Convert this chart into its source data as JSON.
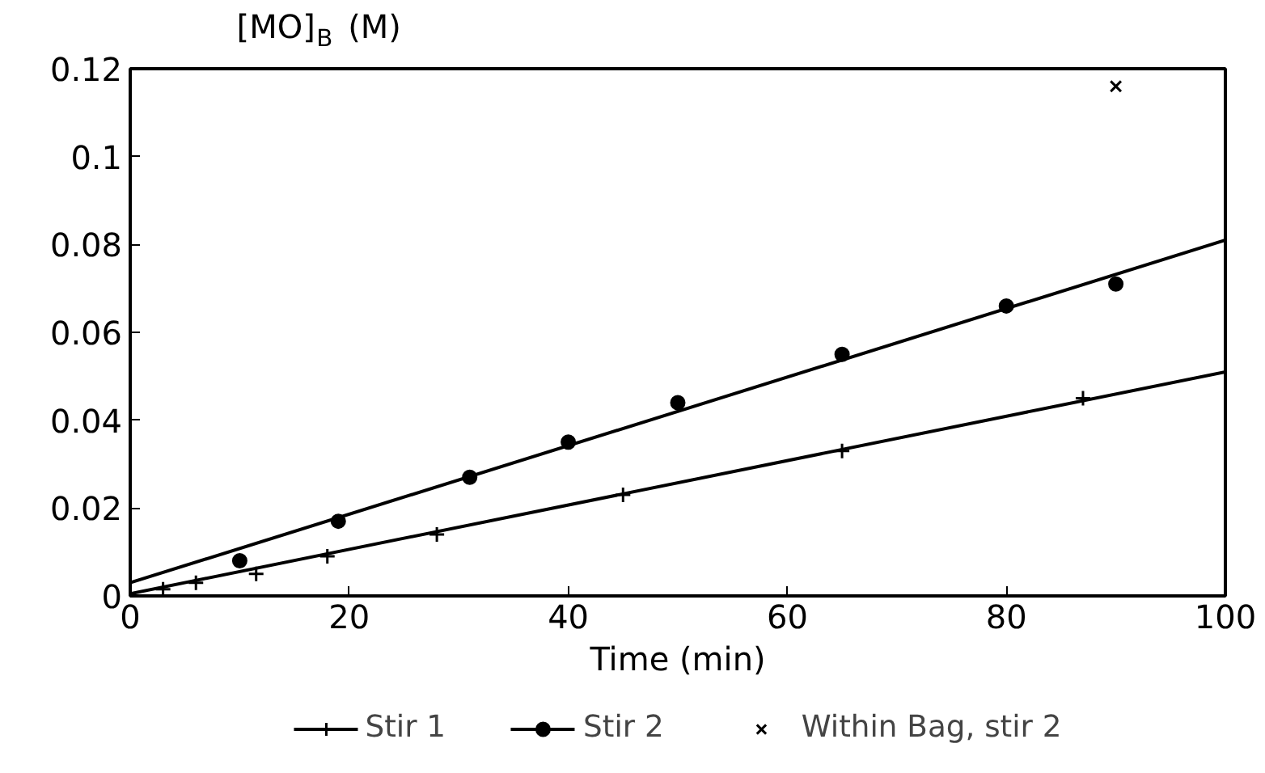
{
  "chart_data": {
    "type": "scatter",
    "xlabel": "Time (min)",
    "ylabel": "[MO]$_{B}$ (M)",
    "xlim": [
      0,
      100
    ],
    "xticks": [
      0,
      20,
      40,
      60,
      80,
      100
    ],
    "ylim": [
      0,
      0.12
    ],
    "yticks": [
      0,
      0.02,
      0.04,
      0.06,
      0.08,
      0.1,
      0.12
    ],
    "grid": false,
    "legend": "bottom",
    "series": [
      {
        "name": "Stir 1",
        "type": "scatter",
        "marker": "cross",
        "color": "#000000",
        "x": [
          3,
          6,
          11.5,
          18,
          28,
          45,
          65,
          87
        ],
        "values": [
          0.0015,
          0.003,
          0.005,
          0.009,
          0.014,
          0.023,
          0.033,
          0.045
        ]
      },
      {
        "type": "line",
        "color": "#000000",
        "x": [
          0,
          100
        ],
        "values": [
          0.0005,
          0.051
        ]
      },
      {
        "name": "Stir 2",
        "type": "scatter",
        "marker": "circle",
        "color": "#000000",
        "x": [
          10,
          19,
          31,
          40,
          50,
          65,
          80,
          90
        ],
        "values": [
          0.008,
          0.017,
          0.027,
          0.035,
          0.044,
          0.055,
          0.066,
          0.071
        ]
      },
      {
        "type": "line",
        "color": "#000000",
        "x": [
          0,
          100
        ],
        "values": [
          0.003,
          0.081
        ]
      },
      {
        "name": "Within Bag, stir 2",
        "marker": "x",
        "color": "#000000",
        "x": [
          90
        ],
        "values": [
          0.116
        ]
      }
    ]
  }
}
